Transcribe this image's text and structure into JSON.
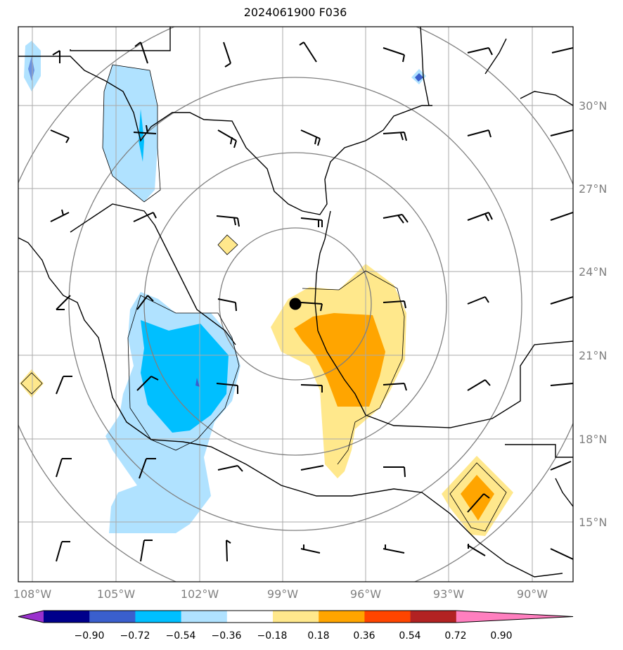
{
  "title": "2024061900 F036",
  "lon_ticks": [
    "108°W",
    "105°W",
    "102°W",
    "99°W",
    "96°W",
    "93°W",
    "90°W"
  ],
  "lat_ticks": [
    "30°N",
    "27°N",
    "24°N",
    "21°N",
    "18°N",
    "15°N"
  ],
  "colorbar": {
    "ticks": [
      "−0.90",
      "−0.72",
      "−0.54",
      "−0.36",
      "−0.18",
      "0.18",
      "0.36",
      "0.54",
      "0.72",
      "0.90"
    ],
    "colors": [
      "#9a32cd",
      "#00008b",
      "#3a5fcd",
      "#00bfff",
      "#b0e2ff",
      "#ffffff",
      "#ffe88c",
      "#ffa500",
      "#ff4500",
      "#b22222",
      "#ff7fbf"
    ]
  },
  "center_marker": {
    "lon": -98.5,
    "lat": 22.9
  },
  "range_rings": "concentric-circles",
  "wind_barbs": "grid-of-barbs"
}
